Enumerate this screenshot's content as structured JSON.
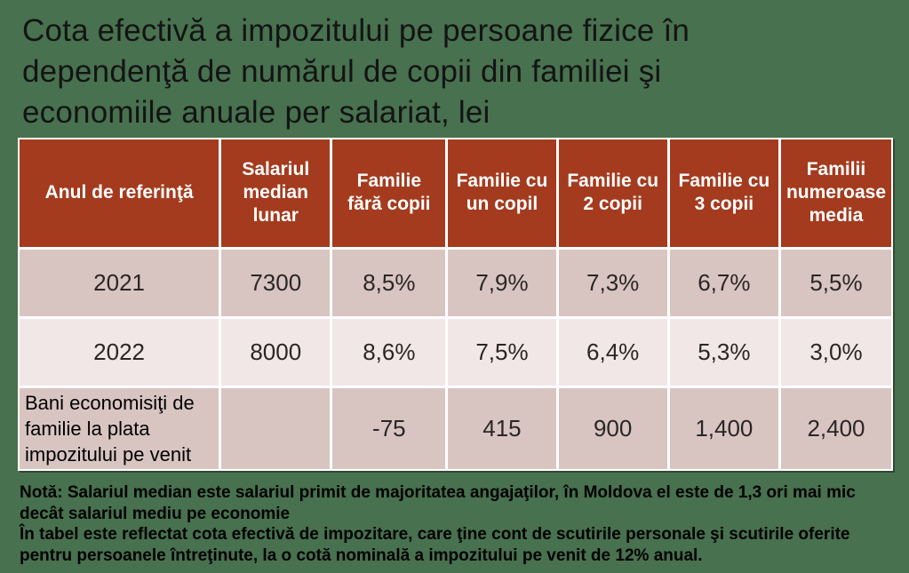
{
  "title": {
    "lines": [
      "Cota efectivă a impozitului pe persoane fizice în",
      "dependenţă de numărul de copii din familiei şi",
      "economiile anuale per salariat, lei"
    ]
  },
  "table": {
    "headers": [
      "Anul de referinţă",
      "Salariul median lunar",
      "Familie fără copii",
      "Familie cu un copil",
      "Familie cu 2 copii",
      "Familie cu 3 copii",
      "Familii numeroase media"
    ],
    "rows": [
      [
        "2021",
        "7300",
        "8,5%",
        "7,9%",
        "7,3%",
        "6,7%",
        "5,5%"
      ],
      [
        "2022",
        "8000",
        "8,6%",
        "7,5%",
        "6,4%",
        "5,3%",
        "3,0%"
      ],
      [
        "Bani economisiţi de familie la plata impozitului pe venit",
        "",
        "-75",
        "415",
        "900",
        "1,400",
        "2,400"
      ]
    ]
  },
  "notes": {
    "lines": [
      "Notă: Salariul median este salariul primit de majoritatea angajaţilor, în Moldova el este de 1,3 ori mai mic",
      "decât salariul mediu pe economie",
      "În tabel este reflectat cota efectivă de impozitare, care ţine cont de scutirile personale şi scutirile oferite",
      "pentru persoanele întreţinute, la o cotă nominală a impozitului pe venit de 12% anual."
    ]
  },
  "colors": {
    "background": "#48714f",
    "header_bg": "#a43b1e",
    "header_text": "#ffffff",
    "row_dark": "#d8c5c1",
    "row_light": "#f0e7e6",
    "grid": "#ffffff",
    "title_text": "#141414",
    "body_text": "#2b2624",
    "notes_text": "#000000"
  }
}
